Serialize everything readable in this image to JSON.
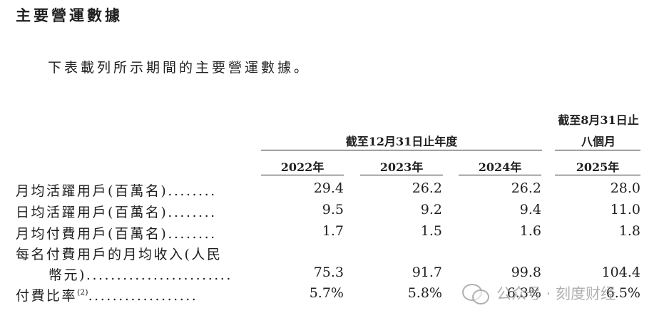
{
  "section_title": "主要營運數據",
  "intro": "下表載列所示期間的主要營運數據。",
  "table": {
    "group_header_years": "截至12月31日止年度",
    "group_header_period_line1": "截至8月31日止",
    "group_header_period_line2": "八個月",
    "columns": [
      "2022年",
      "2023年",
      "2024年",
      "2025年"
    ],
    "rows": [
      {
        "label": "月均活躍用戶(百萬名)",
        "dots": "........",
        "values": [
          "29.4",
          "26.2",
          "26.2",
          "28.0"
        ]
      },
      {
        "label": "日均活躍用戶(百萬名)",
        "dots": "........",
        "values": [
          "9.5",
          "9.2",
          "9.4",
          "11.0"
        ]
      },
      {
        "label": "月均付費用戶(百萬名)",
        "dots": "........",
        "values": [
          "1.7",
          "1.5",
          "1.6",
          "1.8"
        ]
      },
      {
        "label": "每名付費用戶的月均收入(人民",
        "label_cont": "幣元)",
        "dots": "........................",
        "values": [
          "75.3",
          "91.7",
          "99.8",
          "104.4"
        ]
      },
      {
        "label": "付費比率",
        "superscript": "(2)",
        "dots": "..................",
        "values": [
          "5.7%",
          "5.8%",
          "6.3%",
          "6.5%"
        ]
      }
    ]
  },
  "watermark": {
    "icon": "wechat-icon",
    "text": "公众号 · 刻度财经"
  }
}
